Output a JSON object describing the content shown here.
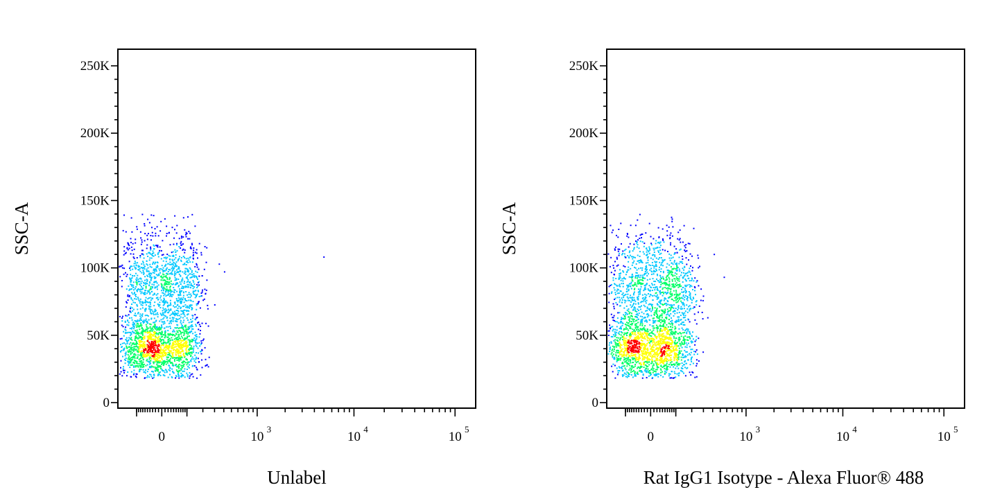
{
  "chart_data": [
    {
      "type": "scatter",
      "style": "density-pseudocolor",
      "xlabel": "Unlabel",
      "ylabel": "SSC-A",
      "x_scale": "biexponential",
      "ylim": [
        0,
        262144
      ],
      "y_ticks": [
        {
          "value": 0,
          "label": "0"
        },
        {
          "value": 50000,
          "label": "50K"
        },
        {
          "value": 100000,
          "label": "100K"
        },
        {
          "value": 150000,
          "label": "150K"
        },
        {
          "value": 200000,
          "label": "200K"
        },
        {
          "value": 250000,
          "label": "250K"
        }
      ],
      "x_ticks": [
        {
          "value": 0,
          "base": "0",
          "exp": ""
        },
        {
          "value": 1000,
          "base": "10",
          "exp": "3"
        },
        {
          "value": 10000,
          "base": "10",
          "exp": "4"
        },
        {
          "value": 100000,
          "base": "10",
          "exp": "5"
        }
      ],
      "populations": [
        {
          "count": 1400,
          "x_center": -10,
          "x_spread": 85,
          "y_center": 40000,
          "y_spread": 11000
        },
        {
          "count": 1300,
          "x_center": 5,
          "x_spread": 90,
          "y_center": 85000,
          "y_spread": 22000
        }
      ],
      "outliers": [
        [
          410,
          97000
        ],
        [
          5000,
          108000
        ],
        [
          155,
          103000
        ],
        [
          110,
          127000
        ]
      ],
      "grid": false
    },
    {
      "type": "scatter",
      "style": "density-pseudocolor",
      "xlabel": "Rat IgG1 Isotype - Alexa Fluor® 488",
      "ylabel": "SSC-A",
      "x_scale": "biexponential",
      "ylim": [
        0,
        262144
      ],
      "y_ticks": [
        {
          "value": 0,
          "label": "0"
        },
        {
          "value": 50000,
          "label": "50K"
        },
        {
          "value": 100000,
          "label": "100K"
        },
        {
          "value": 150000,
          "label": "150K"
        },
        {
          "value": 200000,
          "label": "200K"
        },
        {
          "value": 250000,
          "label": "250K"
        }
      ],
      "x_ticks": [
        {
          "value": 0,
          "base": "0",
          "exp": ""
        },
        {
          "value": 1000,
          "base": "10",
          "exp": "3"
        },
        {
          "value": 10000,
          "base": "10",
          "exp": "4"
        },
        {
          "value": 100000,
          "base": "10",
          "exp": "5"
        }
      ],
      "populations": [
        {
          "count": 1400,
          "x_center": -5,
          "x_spread": 90,
          "y_center": 40000,
          "y_spread": 11000
        },
        {
          "count": 1300,
          "x_center": 15,
          "x_spread": 100,
          "y_center": 85000,
          "y_spread": 22000
        }
      ],
      "outliers": [
        [
          420,
          110000
        ],
        [
          560,
          93000
        ],
        [
          210,
          70000
        ],
        [
          185,
          60000
        ],
        [
          150,
          52000
        ]
      ],
      "grid": false
    }
  ],
  "colors": {
    "density_low": "#0000ff",
    "density_mid_low": "#00c8ff",
    "density_mid": "#00ff66",
    "density_mid_high": "#ffff00",
    "density_high": "#ff0000",
    "axis": "#000000"
  }
}
